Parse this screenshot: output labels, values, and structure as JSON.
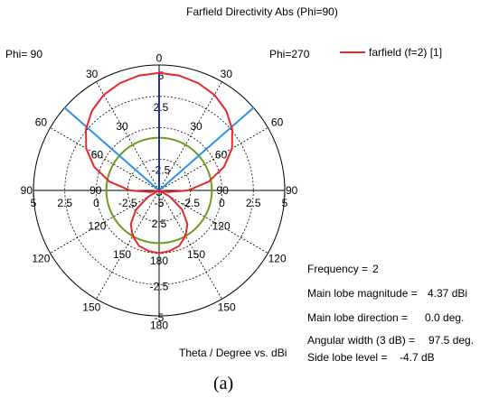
{
  "chart_data": {
    "type": "polar",
    "title": "Farfield Directivity Abs (Phi=90)",
    "left_plane_label": "Phi= 90",
    "right_plane_label": "Phi=270",
    "rlim": [
      -5,
      5
    ],
    "radial_ticks_outer": [
      "5",
      "2.5",
      "0",
      "-2.5",
      "-5"
    ],
    "radial_ticks_inner": [
      "-5",
      "-2.5",
      "0",
      "2.5",
      "5"
    ],
    "grid": true,
    "series": [
      {
        "name": "farfield (f=2) [1]",
        "color": "#e8262c",
        "theta_deg": [
          0,
          10,
          20,
          30,
          40,
          50,
          60,
          70,
          80,
          90,
          100,
          110,
          120,
          130,
          140,
          150,
          160,
          170,
          180
        ],
        "directivity_dBi": [
          4.37,
          4.3,
          4.1,
          3.8,
          3.3,
          2.6,
          1.7,
          0.5,
          -1.0,
          -2.7,
          -4.3,
          -5.0,
          -4.0,
          -2.6,
          -1.5,
          -0.8,
          -0.3,
          -0.1,
          0.0
        ]
      }
    ],
    "reference_circle": {
      "value_dBi": -0.8,
      "color": "#6f9a1e"
    },
    "beamwidth_lines": {
      "angles_deg": [
        -48.75,
        48.75
      ],
      "color": "#2a93e8"
    },
    "main_lobe_line": {
      "angle_deg": 0,
      "color": "#2233aa"
    },
    "legend_position": "top-right",
    "xlabel": "Theta / Degree vs. dBi",
    "info": [
      {
        "label": "Frequency =",
        "value": "2"
      },
      {
        "label": "Main lobe magnitude =",
        "value": "4.37 dBi"
      },
      {
        "label": "Main lobe direction =",
        "value": "0.0 deg."
      },
      {
        "label": "Angular width (3 dB) =",
        "value": "97.5 deg."
      },
      {
        "label": "Side lobe level =",
        "value": "-4.7 dB"
      }
    ],
    "caption": "(a)"
  }
}
